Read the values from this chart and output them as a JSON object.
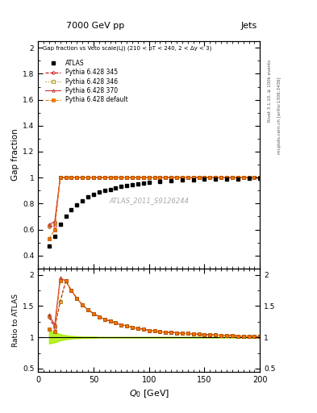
{
  "title_top": "7000 GeV pp",
  "title_right": "Jets",
  "plot_title": "Gap fraction vs Veto scale(LJ) (210 < pT < 240, 2 < Δy < 3)",
  "watermark": "ATLAS_2011_S9126244",
  "xlabel": "Q_{0} [GeV]",
  "ylabel_top": "Gap fraction",
  "ylabel_bottom": "Ratio to ATLAS",
  "xlim": [
    0,
    200
  ],
  "atlas_x": [
    10,
    15,
    20,
    25,
    30,
    35,
    40,
    45,
    50,
    55,
    60,
    65,
    70,
    75,
    80,
    85,
    90,
    95,
    100,
    110,
    120,
    130,
    140,
    150,
    160,
    170,
    180,
    190,
    200
  ],
  "atlas_y": [
    0.47,
    0.55,
    0.64,
    0.7,
    0.75,
    0.79,
    0.82,
    0.85,
    0.87,
    0.89,
    0.9,
    0.91,
    0.92,
    0.93,
    0.94,
    0.945,
    0.95,
    0.96,
    0.963,
    0.97,
    0.975,
    0.98,
    0.983,
    0.986,
    0.988,
    0.99,
    0.991,
    0.993,
    0.995
  ],
  "mc_x": [
    10,
    15,
    20,
    25,
    30,
    35,
    40,
    45,
    50,
    55,
    60,
    65,
    70,
    75,
    80,
    85,
    90,
    95,
    100,
    105,
    110,
    115,
    120,
    125,
    130,
    135,
    140,
    145,
    150,
    155,
    160,
    165,
    170,
    175,
    180,
    185,
    190,
    195,
    200
  ],
  "p345_y": [
    0.62,
    0.63,
    1.0,
    1.0,
    1.0,
    1.0,
    1.0,
    1.0,
    1.0,
    1.0,
    1.0,
    1.0,
    1.0,
    1.0,
    1.0,
    1.0,
    1.0,
    1.0,
    1.0,
    1.0,
    1.0,
    1.0,
    1.0,
    1.0,
    1.0,
    1.0,
    1.0,
    1.0,
    1.0,
    1.0,
    1.0,
    1.0,
    1.0,
    1.0,
    1.0,
    1.0,
    1.0,
    1.0,
    1.0
  ],
  "p346_y": [
    0.63,
    0.65,
    1.0,
    1.0,
    1.0,
    1.0,
    1.0,
    1.0,
    1.0,
    1.0,
    1.0,
    1.0,
    1.0,
    1.0,
    1.0,
    1.0,
    1.0,
    1.0,
    1.0,
    1.0,
    1.0,
    1.0,
    1.0,
    1.0,
    1.0,
    1.0,
    1.0,
    1.0,
    1.0,
    1.0,
    1.0,
    1.0,
    1.0,
    1.0,
    1.0,
    1.0,
    1.0,
    1.0,
    1.0
  ],
  "p370_y": [
    0.64,
    0.66,
    1.0,
    1.0,
    1.0,
    1.0,
    1.0,
    1.0,
    1.0,
    1.0,
    1.0,
    1.0,
    1.0,
    1.0,
    1.0,
    1.0,
    1.0,
    1.0,
    1.0,
    1.0,
    1.0,
    1.0,
    1.0,
    1.0,
    1.0,
    1.0,
    1.0,
    1.0,
    1.0,
    1.0,
    1.0,
    1.0,
    1.0,
    1.0,
    1.0,
    1.0,
    1.0,
    1.0,
    1.0
  ],
  "pdef_y": [
    0.53,
    0.6,
    1.0,
    1.0,
    1.0,
    1.0,
    1.0,
    1.0,
    1.0,
    1.0,
    1.0,
    1.0,
    1.0,
    1.0,
    1.0,
    1.0,
    1.0,
    1.0,
    1.0,
    1.0,
    1.0,
    1.0,
    1.0,
    1.0,
    1.0,
    1.0,
    1.0,
    1.0,
    1.0,
    1.0,
    1.0,
    1.0,
    1.0,
    1.0,
    1.0,
    1.0,
    1.0,
    1.0,
    1.0
  ],
  "ratio_x": [
    10,
    15,
    20,
    25,
    30,
    35,
    40,
    45,
    50,
    55,
    60,
    65,
    70,
    75,
    80,
    85,
    90,
    95,
    100,
    105,
    110,
    115,
    120,
    125,
    130,
    135,
    140,
    145,
    150,
    155,
    160,
    165,
    170,
    175,
    180,
    185,
    190,
    195,
    200
  ],
  "ratio_p345_y": [
    1.32,
    1.15,
    1.57,
    1.9,
    1.75,
    1.62,
    1.52,
    1.44,
    1.38,
    1.33,
    1.29,
    1.26,
    1.23,
    1.2,
    1.18,
    1.16,
    1.14,
    1.13,
    1.11,
    1.1,
    1.09,
    1.08,
    1.08,
    1.07,
    1.06,
    1.06,
    1.05,
    1.05,
    1.04,
    1.04,
    1.04,
    1.03,
    1.03,
    1.03,
    1.02,
    1.02,
    1.02,
    1.01,
    1.01
  ],
  "ratio_p346_y": [
    1.34,
    1.18,
    1.57,
    1.9,
    1.75,
    1.62,
    1.52,
    1.44,
    1.38,
    1.33,
    1.29,
    1.26,
    1.23,
    1.2,
    1.18,
    1.16,
    1.14,
    1.13,
    1.11,
    1.1,
    1.09,
    1.08,
    1.08,
    1.07,
    1.06,
    1.06,
    1.05,
    1.05,
    1.04,
    1.04,
    1.04,
    1.03,
    1.03,
    1.03,
    1.02,
    1.02,
    1.02,
    1.01,
    1.01
  ],
  "ratio_p370_y": [
    1.36,
    1.2,
    1.95,
    1.9,
    1.75,
    1.62,
    1.52,
    1.44,
    1.38,
    1.33,
    1.29,
    1.26,
    1.23,
    1.2,
    1.18,
    1.16,
    1.14,
    1.13,
    1.11,
    1.1,
    1.09,
    1.08,
    1.08,
    1.07,
    1.06,
    1.06,
    1.05,
    1.05,
    1.04,
    1.04,
    1.04,
    1.03,
    1.03,
    1.03,
    1.02,
    1.02,
    1.02,
    1.01,
    1.01
  ],
  "ratio_pdef_y": [
    1.13,
    1.09,
    1.9,
    1.9,
    1.75,
    1.62,
    1.52,
    1.44,
    1.38,
    1.33,
    1.29,
    1.26,
    1.23,
    1.2,
    1.18,
    1.16,
    1.14,
    1.13,
    1.11,
    1.1,
    1.09,
    1.08,
    1.08,
    1.07,
    1.06,
    1.06,
    1.05,
    1.05,
    1.04,
    1.04,
    1.04,
    1.03,
    1.03,
    1.03,
    1.02,
    1.02,
    1.02,
    1.01,
    1.01
  ],
  "green_band_x": [
    10,
    15,
    20,
    25,
    30,
    35,
    40,
    45,
    50,
    55,
    60,
    65,
    70,
    75,
    80,
    85,
    90,
    95,
    100,
    105,
    110,
    115,
    120,
    125,
    130,
    135,
    140,
    145,
    150,
    155,
    160,
    165,
    170,
    175,
    180,
    185,
    190,
    195,
    200
  ],
  "green_band_upper": [
    1.1,
    1.08,
    1.05,
    1.03,
    1.02,
    1.015,
    1.01,
    1.01,
    1.01,
    1.005,
    1.005,
    1.005,
    1.005,
    1.005,
    1.005,
    1.005,
    1.005,
    1.005,
    1.005,
    1.005,
    1.005,
    1.005,
    1.005,
    1.005,
    1.005,
    1.005,
    1.005,
    1.005,
    1.005,
    1.005,
    1.005,
    1.005,
    1.005,
    1.005,
    1.005,
    1.005,
    1.005,
    1.005,
    1.005
  ],
  "green_band_lower": [
    0.9,
    0.92,
    0.95,
    0.97,
    0.98,
    0.985,
    0.99,
    0.99,
    0.99,
    0.995,
    0.995,
    0.995,
    0.995,
    0.995,
    0.995,
    0.995,
    0.995,
    0.995,
    0.995,
    0.995,
    0.995,
    0.995,
    0.995,
    0.995,
    0.995,
    0.995,
    0.995,
    0.995,
    0.995,
    0.995,
    0.995,
    0.995,
    0.995,
    0.995,
    0.995,
    0.995,
    0.995,
    0.995,
    0.995
  ],
  "p345_color": "#cc0000",
  "p346_color": "#aa8800",
  "p370_color": "#cc3333",
  "pdef_color": "#ee7700",
  "atlas_color": "#000000"
}
